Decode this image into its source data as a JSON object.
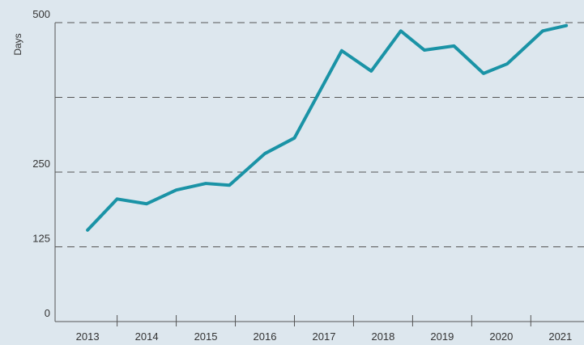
{
  "chart_data": {
    "type": "line",
    "y_label": "Days",
    "x": [
      2013.0,
      2013.5,
      2014.0,
      2014.5,
      2015.0,
      2015.4,
      2016.0,
      2016.5,
      2017.3,
      2017.8,
      2018.3,
      2018.7,
      2019.2,
      2019.7,
      2020.1,
      2020.7,
      2021.1
    ],
    "series": [
      {
        "name": "Days",
        "color": "#1a93a6",
        "values": [
          153,
          205,
          197,
          220,
          231,
          228,
          281,
          307,
          453,
          419,
          486,
          454,
          461,
          415,
          431,
          486,
          495
        ]
      }
    ],
    "xlim": [
      2012.45,
      2021.4
    ],
    "xticks": [
      2013,
      2014,
      2015,
      2016,
      2017,
      2018,
      2019,
      2020,
      2021
    ],
    "x_tick_marks": [
      2013.5,
      2014.5,
      2015.5,
      2016.5,
      2017.5,
      2018.5,
      2019.5,
      2020.5
    ],
    "ylim": [
      0,
      500
    ],
    "yticks": [
      0,
      125,
      250,
      500
    ],
    "grid_lines": [
      125,
      250,
      375,
      500
    ],
    "grid": true
  }
}
